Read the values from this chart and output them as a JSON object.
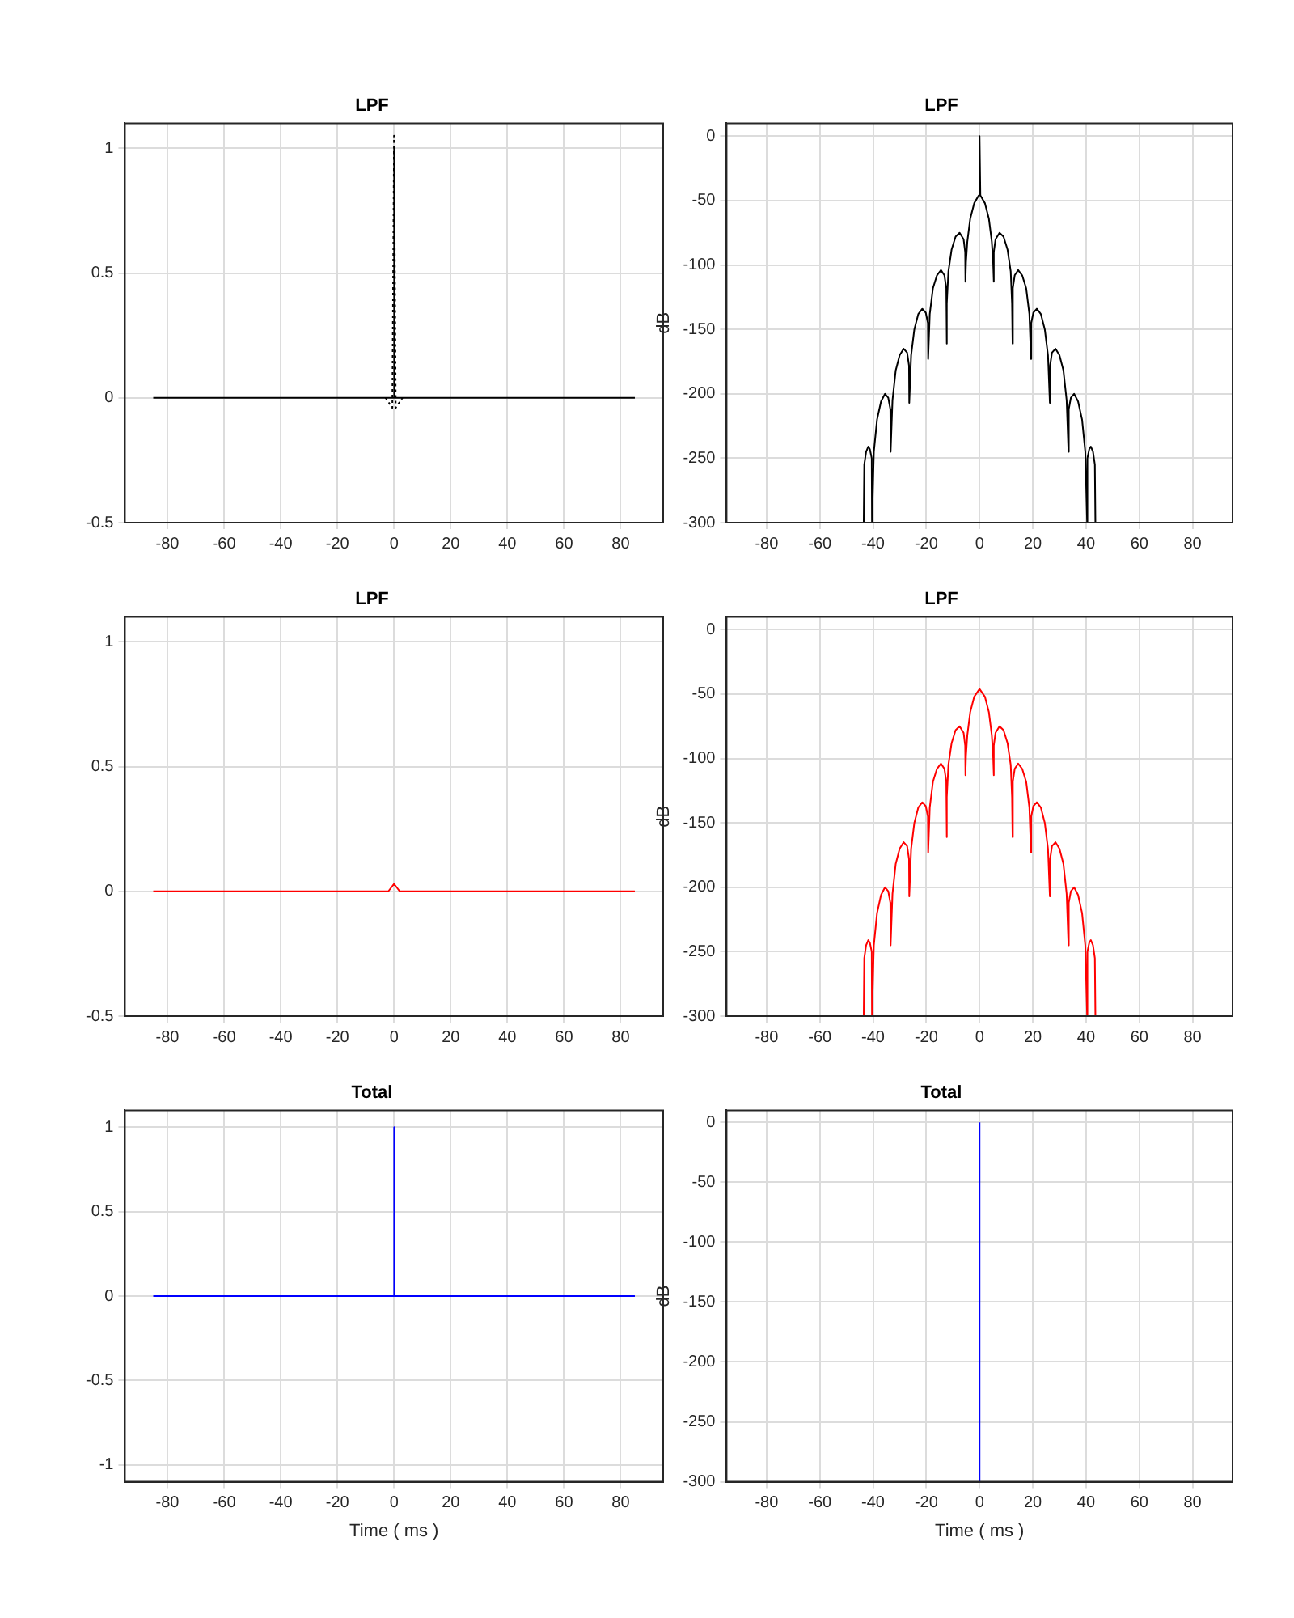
{
  "chart_data": [
    {
      "type": "line",
      "title": "LPF",
      "xlim": [
        -95,
        95
      ],
      "xticks": [
        -80,
        -60,
        -40,
        -20,
        0,
        20,
        40,
        60,
        80
      ],
      "ylim": [
        -0.5,
        1.1
      ],
      "yticks": [
        -0.5,
        0,
        0.5,
        1
      ],
      "grid": true,
      "marker": "none",
      "series": [
        {
          "color": "#000000",
          "line_style": "dotted",
          "x": [
            -3,
            -0.6,
            0,
            0.6,
            3
          ],
          "values": [
            0,
            -0.04,
            1.05,
            -0.04,
            0
          ]
        },
        {
          "color": "#000000",
          "line_style": "solid",
          "x": [
            -85,
            -0.1,
            0,
            0.1,
            85
          ],
          "values": [
            0,
            0,
            1,
            0,
            0
          ]
        }
      ]
    },
    {
      "type": "line",
      "title": "LPF",
      "ylabel": "dB",
      "xlim": [
        -95,
        95
      ],
      "xticks": [
        -80,
        -60,
        -40,
        -20,
        0,
        20,
        40,
        60,
        80
      ],
      "ylim": [
        -300,
        10
      ],
      "yticks": [
        -300,
        -250,
        -200,
        -150,
        -100,
        -50,
        0
      ],
      "grid": true,
      "marker": "none",
      "series": [
        {
          "color": "#000000",
          "line_style": "solid",
          "x": [
            -43.5,
            -43.3,
            -42.6,
            -41.8,
            -41.2,
            -40.5,
            -40.4,
            -39.7,
            -38.5,
            -37,
            -35.5,
            -34.3,
            -33.5,
            -33.4,
            -32.7,
            -31.5,
            -30,
            -28.5,
            -27.2,
            -26.5,
            -26.4,
            -25.7,
            -24.5,
            -23,
            -21.5,
            -20.2,
            -19.4,
            -19.3,
            -18.7,
            -17.5,
            -16,
            -14.5,
            -13.2,
            -12.5,
            -12.4,
            -12.2,
            -11.7,
            -10.5,
            -9,
            -7.5,
            -6,
            -5.4,
            -5.3,
            -5.1,
            -4.6,
            -3.5,
            -2,
            -0.3,
            0,
            0.3,
            2,
            3.5,
            4.6,
            5.1,
            5.3,
            5.4,
            6,
            7.5,
            9,
            10.5,
            11.7,
            12.2,
            12.4,
            12.5,
            13.2,
            14.5,
            16,
            17.5,
            18.7,
            19.3,
            19.4,
            20.2,
            21.5,
            23,
            24.5,
            25.7,
            26.4,
            26.5,
            27.2,
            28.5,
            30,
            31.5,
            32.7,
            33.4,
            33.5,
            34.3,
            35.5,
            37,
            38.5,
            39.7,
            40.4,
            40.5,
            41.2,
            41.8,
            42.6,
            43.3,
            43.5
          ],
          "values": [
            -300,
            -255,
            -245,
            -241,
            -243,
            -250,
            -300,
            -245,
            -220,
            -206,
            -200,
            -203,
            -212,
            -245,
            -205,
            -182,
            -170,
            -165,
            -168,
            -178,
            -207,
            -170,
            -150,
            -138,
            -134,
            -137,
            -145,
            -173,
            -138,
            -118,
            -108,
            -104,
            -108,
            -118,
            -161,
            -130,
            -105,
            -88,
            -78,
            -75,
            -80,
            -90,
            -113,
            -98,
            -82,
            -64,
            -52,
            -46,
            0,
            -46,
            -52,
            -64,
            -82,
            -98,
            -113,
            -90,
            -80,
            -75,
            -78,
            -88,
            -105,
            -130,
            -161,
            -118,
            -108,
            -104,
            -108,
            -118,
            -138,
            -173,
            -145,
            -137,
            -134,
            -138,
            -150,
            -170,
            -207,
            -178,
            -168,
            -165,
            -170,
            -182,
            -205,
            -245,
            -212,
            -203,
            -200,
            -206,
            -220,
            -245,
            -300,
            -250,
            -243,
            -241,
            -245,
            -255,
            -300
          ]
        }
      ]
    },
    {
      "type": "line",
      "title": "LPF",
      "xlim": [
        -95,
        95
      ],
      "xticks": [
        -80,
        -60,
        -40,
        -20,
        0,
        20,
        40,
        60,
        80
      ],
      "ylim": [
        -0.5,
        1.1
      ],
      "yticks": [
        -0.5,
        0,
        0.5,
        1
      ],
      "grid": true,
      "marker": "none",
      "series": [
        {
          "color": "#ff0000",
          "line_style": "solid",
          "x": [
            -85,
            -2,
            0,
            2,
            85
          ],
          "values": [
            0,
            0,
            0.03,
            0,
            0
          ]
        }
      ]
    },
    {
      "type": "line",
      "title": "LPF",
      "ylabel": "dB",
      "xlim": [
        -95,
        95
      ],
      "xticks": [
        -80,
        -60,
        -40,
        -20,
        0,
        20,
        40,
        60,
        80
      ],
      "ylim": [
        -300,
        10
      ],
      "yticks": [
        -300,
        -250,
        -200,
        -150,
        -100,
        -50,
        0
      ],
      "grid": true,
      "marker": "none",
      "series": [
        {
          "color": "#ff0000",
          "line_style": "solid",
          "x": [
            -43.5,
            -43.3,
            -42.6,
            -41.8,
            -41.2,
            -40.5,
            -40.4,
            -39.7,
            -38.5,
            -37,
            -35.5,
            -34.3,
            -33.5,
            -33.4,
            -32.7,
            -31.5,
            -30,
            -28.5,
            -27.2,
            -26.5,
            -26.4,
            -25.7,
            -24.5,
            -23,
            -21.5,
            -20.2,
            -19.4,
            -19.3,
            -18.7,
            -17.5,
            -16,
            -14.5,
            -13.2,
            -12.5,
            -12.4,
            -12.2,
            -11.7,
            -10.5,
            -9,
            -7.5,
            -6,
            -5.4,
            -5.3,
            -5.1,
            -4.6,
            -3.5,
            -2,
            0,
            2,
            3.5,
            4.6,
            5.1,
            5.3,
            5.4,
            6,
            7.5,
            9,
            10.5,
            11.7,
            12.2,
            12.4,
            12.5,
            13.2,
            14.5,
            16,
            17.5,
            18.7,
            19.3,
            19.4,
            20.2,
            21.5,
            23,
            24.5,
            25.7,
            26.4,
            26.5,
            27.2,
            28.5,
            30,
            31.5,
            32.7,
            33.4,
            33.5,
            34.3,
            35.5,
            37,
            38.5,
            39.7,
            40.4,
            40.5,
            41.2,
            41.8,
            42.6,
            43.3,
            43.5
          ],
          "values": [
            -300,
            -255,
            -245,
            -241,
            -243,
            -250,
            -300,
            -245,
            -220,
            -206,
            -200,
            -203,
            -212,
            -245,
            -205,
            -182,
            -170,
            -165,
            -168,
            -178,
            -207,
            -170,
            -150,
            -138,
            -134,
            -137,
            -145,
            -173,
            -138,
            -118,
            -108,
            -104,
            -108,
            -118,
            -161,
            -130,
            -105,
            -88,
            -78,
            -75,
            -80,
            -90,
            -113,
            -98,
            -82,
            -64,
            -52,
            -46,
            -52,
            -64,
            -82,
            -98,
            -113,
            -90,
            -80,
            -75,
            -78,
            -88,
            -105,
            -130,
            -161,
            -118,
            -108,
            -104,
            -108,
            -118,
            -138,
            -173,
            -145,
            -137,
            -134,
            -138,
            -150,
            -170,
            -207,
            -178,
            -168,
            -165,
            -170,
            -182,
            -205,
            -245,
            -212,
            -203,
            -200,
            -206,
            -220,
            -245,
            -300,
            -250,
            -243,
            -241,
            -245,
            -255,
            -300
          ]
        }
      ]
    },
    {
      "type": "line",
      "title": "Total",
      "xlabel": "Time ( ms )",
      "xlim": [
        -95,
        95
      ],
      "xticks": [
        -80,
        -60,
        -40,
        -20,
        0,
        20,
        40,
        60,
        80
      ],
      "ylim": [
        -1.1,
        1.1
      ],
      "yticks": [
        -1,
        -0.5,
        0,
        0.5,
        1
      ],
      "grid": true,
      "marker": "none",
      "series": [
        {
          "color": "#0000ff",
          "line_style": "solid",
          "x": [
            -85,
            -0.1,
            0,
            0.1,
            85
          ],
          "values": [
            0,
            0,
            1,
            0,
            0
          ]
        }
      ]
    },
    {
      "type": "line",
      "title": "Total",
      "xlabel": "Time ( ms )",
      "ylabel": "dB",
      "xlim": [
        -95,
        95
      ],
      "xticks": [
        -80,
        -60,
        -40,
        -20,
        0,
        20,
        40,
        60,
        80
      ],
      "ylim": [
        -300,
        10
      ],
      "yticks": [
        -300,
        -250,
        -200,
        -150,
        -100,
        -50,
        0
      ],
      "grid": true,
      "marker": "none",
      "series": [
        {
          "color": "#0000ff",
          "line_style": "solid",
          "x": [
            0,
            0
          ],
          "values": [
            -300,
            0
          ]
        }
      ]
    }
  ]
}
